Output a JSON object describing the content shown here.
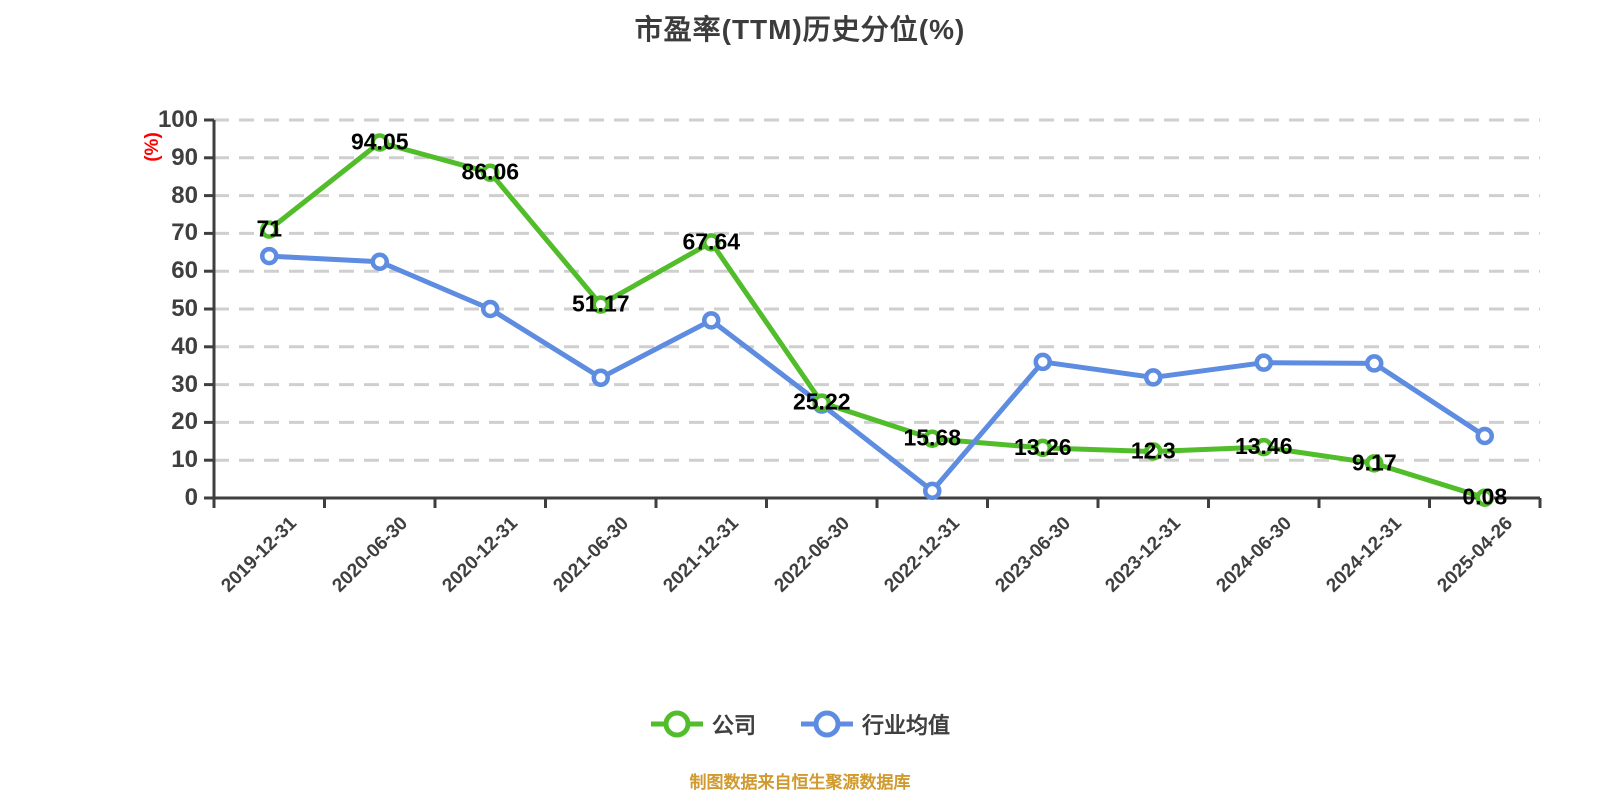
{
  "chart": {
    "title": "市盈率(TTM)历史分位(%)",
    "y_unit": "(%)",
    "caption": "制图数据来自恒生聚源数据库"
  },
  "chart_data": {
    "type": "line",
    "title": "市盈率(TTM)历史分位(%)",
    "xlabel": "",
    "ylabel": "(%)",
    "ylim": [
      0,
      100
    ],
    "yticks": [
      0,
      10,
      20,
      30,
      40,
      50,
      60,
      70,
      80,
      90,
      100
    ],
    "grid": true,
    "grid_style": "dashed",
    "legend_position": "bottom",
    "categories": [
      "2019-12-31",
      "2020-06-30",
      "2020-12-31",
      "2021-06-30",
      "2021-12-31",
      "2022-06-30",
      "2022-12-31",
      "2023-06-30",
      "2023-12-31",
      "2024-06-30",
      "2024-12-31",
      "2025-04-26"
    ],
    "series": [
      {
        "name": "公司",
        "color": "#52bd2a",
        "values": [
          71,
          94.05,
          86.06,
          51.17,
          67.64,
          25.22,
          15.68,
          13.26,
          12.3,
          13.46,
          9.17,
          0.08
        ],
        "point_labels": [
          "71",
          "94.05",
          "86.06",
          "51.17",
          "67.64",
          "25.22",
          "15.68",
          "13.26",
          "12.3",
          "13.46",
          "9.17",
          "0.08"
        ]
      },
      {
        "name": "行业均值",
        "color": "#5d8ce0",
        "values": [
          64,
          62.5,
          50,
          31.8,
          47,
          24.7,
          1.9,
          36,
          31.9,
          35.8,
          35.6,
          16.4
        ],
        "point_labels": []
      }
    ],
    "colors": {
      "title": "#3c3c3c",
      "axis": "#3f3f3f",
      "grid": "#cfcfcf",
      "tick_label": "#3f3f3f",
      "data_label": "#000000",
      "y_unit": "#ff0000",
      "caption": "#d19a2f",
      "marker_fill": "#ffffff"
    }
  }
}
